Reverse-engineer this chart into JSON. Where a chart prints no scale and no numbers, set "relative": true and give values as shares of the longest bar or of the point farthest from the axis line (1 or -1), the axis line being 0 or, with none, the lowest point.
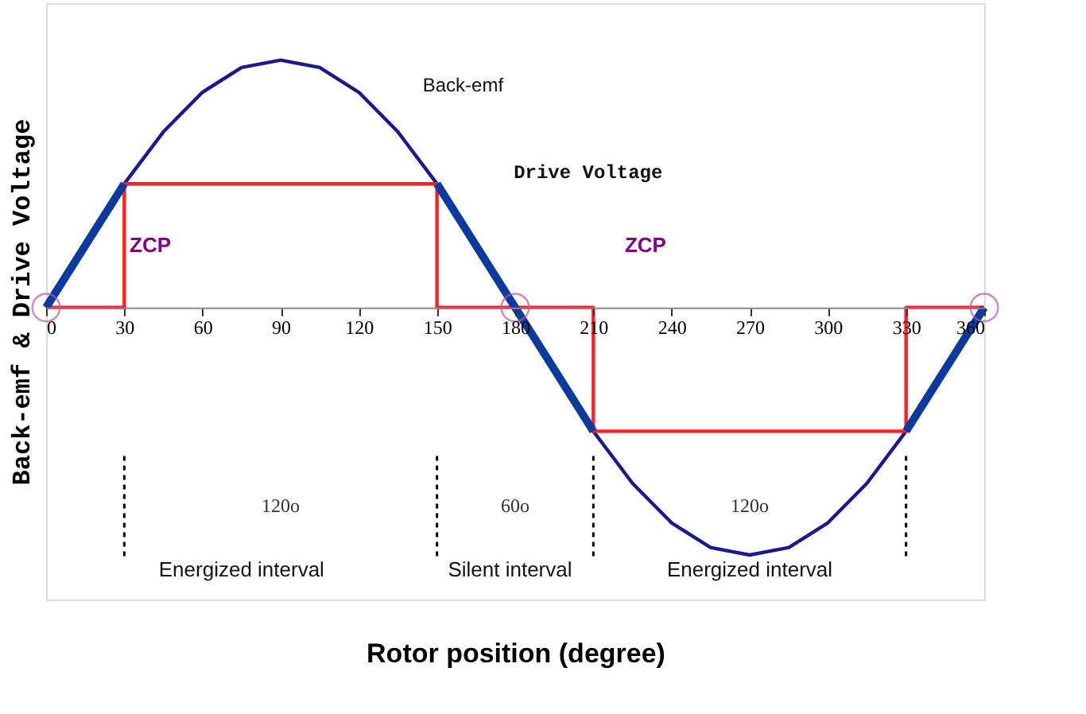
{
  "chart_data": {
    "type": "line",
    "relative": true,
    "xlabel": "Rotor position (degree)",
    "ylabel": "Back-emf & Drive Voltage",
    "xlim": [
      0,
      360
    ],
    "xticks": [
      0,
      30,
      60,
      90,
      120,
      150,
      180,
      210,
      240,
      270,
      300,
      330,
      360
    ],
    "grid": false,
    "series": [
      {
        "color": "#1a1a8c",
        "x": [
          0,
          15,
          30,
          45,
          60,
          75,
          90,
          105,
          120,
          135,
          150,
          165,
          180,
          195,
          210,
          225,
          240,
          255,
          270,
          285,
          300,
          315,
          330,
          345,
          360
        ],
        "values": [
          0,
          0.26,
          0.5,
          0.71,
          0.87,
          0.97,
          1,
          0.97,
          0.87,
          0.71,
          0.5,
          0.26,
          0,
          -0.26,
          -0.5,
          -0.71,
          -0.87,
          -0.97,
          -1,
          -0.97,
          -0.87,
          -0.71,
          -0.5,
          -0.26,
          0
        ]
      },
      {
        "color": "#ff2020",
        "x": [
          0,
          30,
          30,
          150,
          150,
          210,
          210,
          330,
          330,
          360
        ],
        "values": [
          0,
          0,
          0.5,
          0.5,
          0,
          0,
          -0.5,
          -0.5,
          0,
          0
        ]
      },
      {
        "color": "#0a3aa0",
        "x": [
          0,
          30
        ],
        "values": [
          0,
          0.5
        ]
      },
      {
        "color": "#0a3aa0",
        "x": [
          150,
          210
        ],
        "values": [
          0.5,
          -0.5
        ]
      },
      {
        "color": "#0a3aa0",
        "x": [
          330,
          360
        ],
        "values": [
          -0.5,
          0
        ]
      },
      {
        "type": "scatter",
        "marker": "circle",
        "color": "#b05ab0",
        "x": [
          0,
          180,
          360
        ],
        "values": [
          0,
          0,
          0
        ]
      }
    ],
    "ref_lines": [
      {
        "axis": "x",
        "value": 30,
        "line_style": "dashed",
        "color": "#000000"
      },
      {
        "axis": "x",
        "value": 150,
        "line_style": "dashed",
        "color": "#000000"
      },
      {
        "axis": "x",
        "value": 210,
        "line_style": "dashed",
        "color": "#000000"
      },
      {
        "axis": "x",
        "value": 330,
        "line_style": "dashed",
        "color": "#000000"
      }
    ],
    "annotations": [
      "Back-emf",
      "Drive Voltage",
      "ZCP",
      "ZCP",
      "120o",
      "60o",
      "120o",
      "Energized interval",
      "Silent interval",
      "Energized interval"
    ]
  }
}
